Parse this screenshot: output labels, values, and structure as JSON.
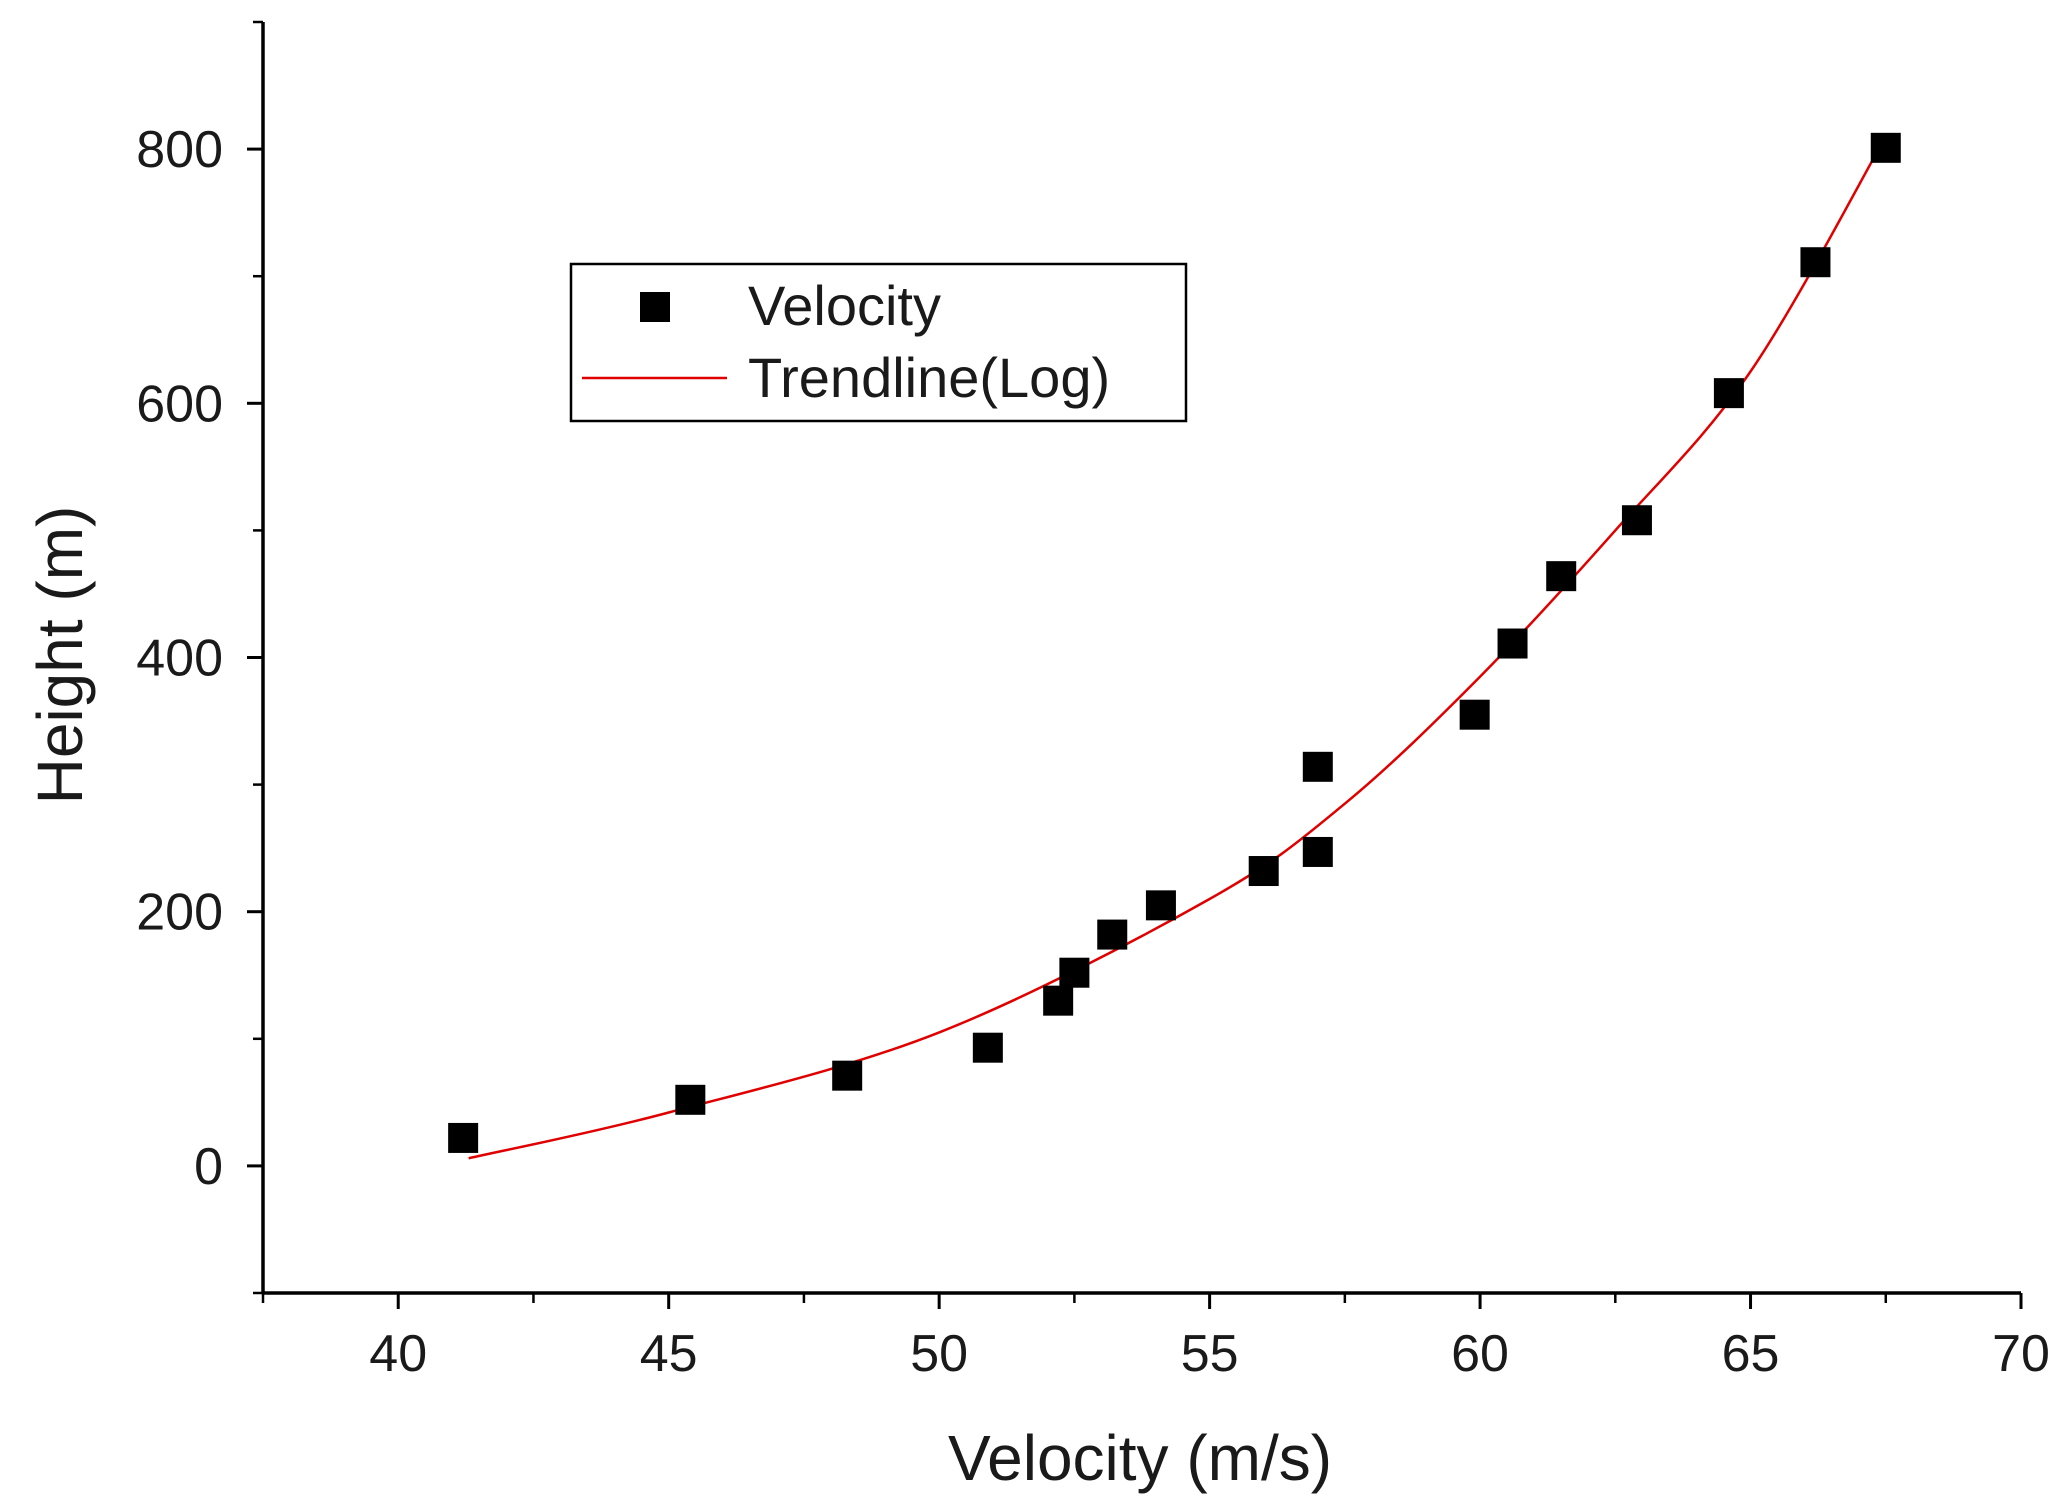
{
  "chart_data": {
    "type": "scatter",
    "title": "",
    "xlabel": "Velocity (m/s)",
    "ylabel": "Height (m)",
    "xlim": [
      37.5,
      70
    ],
    "ylim": [
      -100,
      900
    ],
    "x_ticks": [
      40,
      45,
      50,
      55,
      60,
      65,
      70
    ],
    "y_ticks": [
      0,
      200,
      400,
      600,
      800
    ],
    "x_tick_labels": [
      "40",
      "45",
      "50",
      "55",
      "60",
      "65",
      "70"
    ],
    "y_tick_labels": [
      "0",
      "200",
      "400",
      "600",
      "800"
    ],
    "x_minor_ticks": [
      37.5,
      42.5,
      47.5,
      52.5,
      57.5,
      62.5,
      67.5
    ],
    "y_minor_ticks": [
      -100,
      100,
      300,
      500,
      700,
      900
    ],
    "grid": false,
    "legend_position": "upper-left",
    "series": [
      {
        "name": "Velocity",
        "kind": "scatter",
        "marker": "square",
        "color": "#000000",
        "points": [
          {
            "x": 41.2,
            "y": 22
          },
          {
            "x": 45.4,
            "y": 52
          },
          {
            "x": 48.3,
            "y": 71
          },
          {
            "x": 50.9,
            "y": 93
          },
          {
            "x": 52.2,
            "y": 130
          },
          {
            "x": 52.5,
            "y": 152
          },
          {
            "x": 53.2,
            "y": 182
          },
          {
            "x": 54.1,
            "y": 205
          },
          {
            "x": 56.0,
            "y": 232
          },
          {
            "x": 57.0,
            "y": 247
          },
          {
            "x": 57.0,
            "y": 314
          },
          {
            "x": 59.9,
            "y": 355
          },
          {
            "x": 60.6,
            "y": 411
          },
          {
            "x": 61.5,
            "y": 464
          },
          {
            "x": 62.9,
            "y": 508
          },
          {
            "x": 64.6,
            "y": 608
          },
          {
            "x": 66.2,
            "y": 711
          },
          {
            "x": 67.5,
            "y": 801
          }
        ]
      },
      {
        "name": "Trendline(Log)",
        "kind": "line",
        "color": "#e00000",
        "points": [
          {
            "x": 41.3,
            "y": 6
          },
          {
            "x": 45.0,
            "y": 42
          },
          {
            "x": 50.0,
            "y": 105
          },
          {
            "x": 55.0,
            "y": 210
          },
          {
            "x": 57.5,
            "y": 285
          },
          {
            "x": 60.0,
            "y": 385
          },
          {
            "x": 62.5,
            "y": 500
          },
          {
            "x": 65.0,
            "y": 625
          },
          {
            "x": 67.5,
            "y": 810
          }
        ]
      }
    ]
  }
}
